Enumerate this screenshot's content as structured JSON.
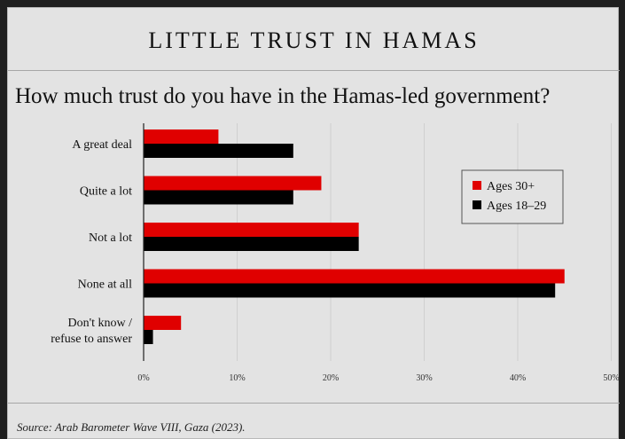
{
  "chart_data": {
    "type": "bar",
    "orientation": "horizontal",
    "title": "LITTLE TRUST IN HAMAS",
    "subtitle": "How much trust do you have in the Hamas-led government?",
    "categories": [
      "A great deal",
      "Quite a lot",
      "Not a lot",
      "None at all",
      "Don't know / refuse to answer"
    ],
    "category_lines": [
      [
        "A great deal"
      ],
      [
        "Quite a lot"
      ],
      [
        "Not a lot"
      ],
      [
        "None at all"
      ],
      [
        "Don't know /",
        "refuse to answer"
      ]
    ],
    "series": [
      {
        "name": "Ages 30+",
        "color": "#e00000",
        "values": [
          8,
          19,
          23,
          45,
          4
        ]
      },
      {
        "name": "Ages 18–29",
        "color": "#000000",
        "values": [
          16,
          16,
          23,
          44,
          1
        ]
      }
    ],
    "x_ticks": [
      0,
      10,
      20,
      30,
      40,
      50
    ],
    "x_tick_labels": [
      "0%",
      "10%",
      "20%",
      "30%",
      "40%",
      "50%"
    ],
    "xlim": [
      0,
      50
    ],
    "grid": true,
    "legend_position": "top-right"
  },
  "source": "Source: Arab Barometer Wave VIII, Gaza (2023)."
}
